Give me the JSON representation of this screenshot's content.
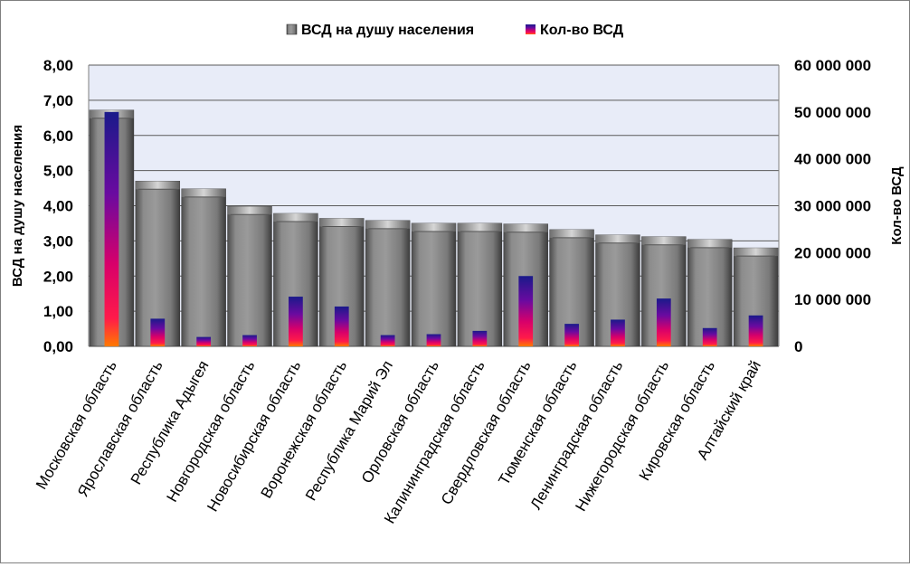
{
  "chart_data": {
    "type": "bar",
    "categories": [
      "Московская область",
      "Ярославская область",
      "Республика Адыгея",
      "Новгородская область",
      "Новосибирская область",
      "Воронежская область",
      "Республика Марий Эл",
      "Орловская область",
      "Калининградская область",
      "Свердловская область",
      "Тюменская область",
      "Ленинградская область",
      "Нижегородская область",
      "Кировская область",
      "Алтайский край"
    ],
    "series": [
      {
        "name": "ВСД на душу населения",
        "axis": "left",
        "color": "#808080",
        "values": [
          6.72,
          4.7,
          4.48,
          3.98,
          3.78,
          3.64,
          3.58,
          3.5,
          3.5,
          3.48,
          3.32,
          3.17,
          3.12,
          3.04,
          2.8
        ]
      },
      {
        "name": "Кол-во ВСД",
        "axis": "right",
        "color": "#7a0a8a",
        "values": [
          50000000,
          5900000,
          2000000,
          2400000,
          10600000,
          8500000,
          2400000,
          2600000,
          3300000,
          15000000,
          4800000,
          5700000,
          10200000,
          3900000,
          6600000
        ]
      }
    ],
    "ylabel": "ВСД на душу населения",
    "y2label": "Кол-во ВСД",
    "ylim": [
      0,
      8
    ],
    "y2lim": [
      0,
      60000000
    ],
    "yticks": [
      "0,00",
      "1,00",
      "2,00",
      "3,00",
      "4,00",
      "5,00",
      "6,00",
      "7,00",
      "8,00"
    ],
    "y2ticks": [
      "0",
      "10 000 000",
      "20 000 000",
      "30 000 000",
      "40 000 000",
      "50 000 000",
      "60 000 000"
    ],
    "grid": true,
    "legend": "top",
    "plot_background": "#e8ecf8"
  }
}
